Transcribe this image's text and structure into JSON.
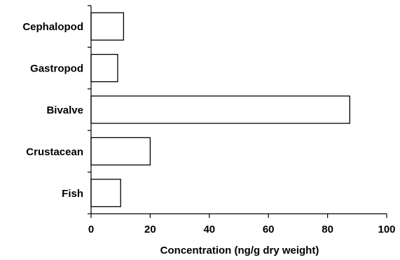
{
  "chart_data": {
    "type": "bar",
    "orientation": "horizontal",
    "title": "",
    "categories": [
      "Cephalopod",
      "Gastropod",
      "Bivalve",
      "Crustacean",
      "Fish"
    ],
    "values": [
      11,
      9,
      87.5,
      20,
      10
    ],
    "xlabel": "Concentration (ng/g dry weight)",
    "ylabel": "",
    "xlim": [
      0,
      100
    ],
    "xticks": [
      0,
      20,
      40,
      60,
      80,
      100
    ],
    "grid": false,
    "legend": "none",
    "colors": {
      "bar_fill": "#ffffff",
      "bar_stroke": "#000000",
      "axis": "#000000"
    }
  }
}
